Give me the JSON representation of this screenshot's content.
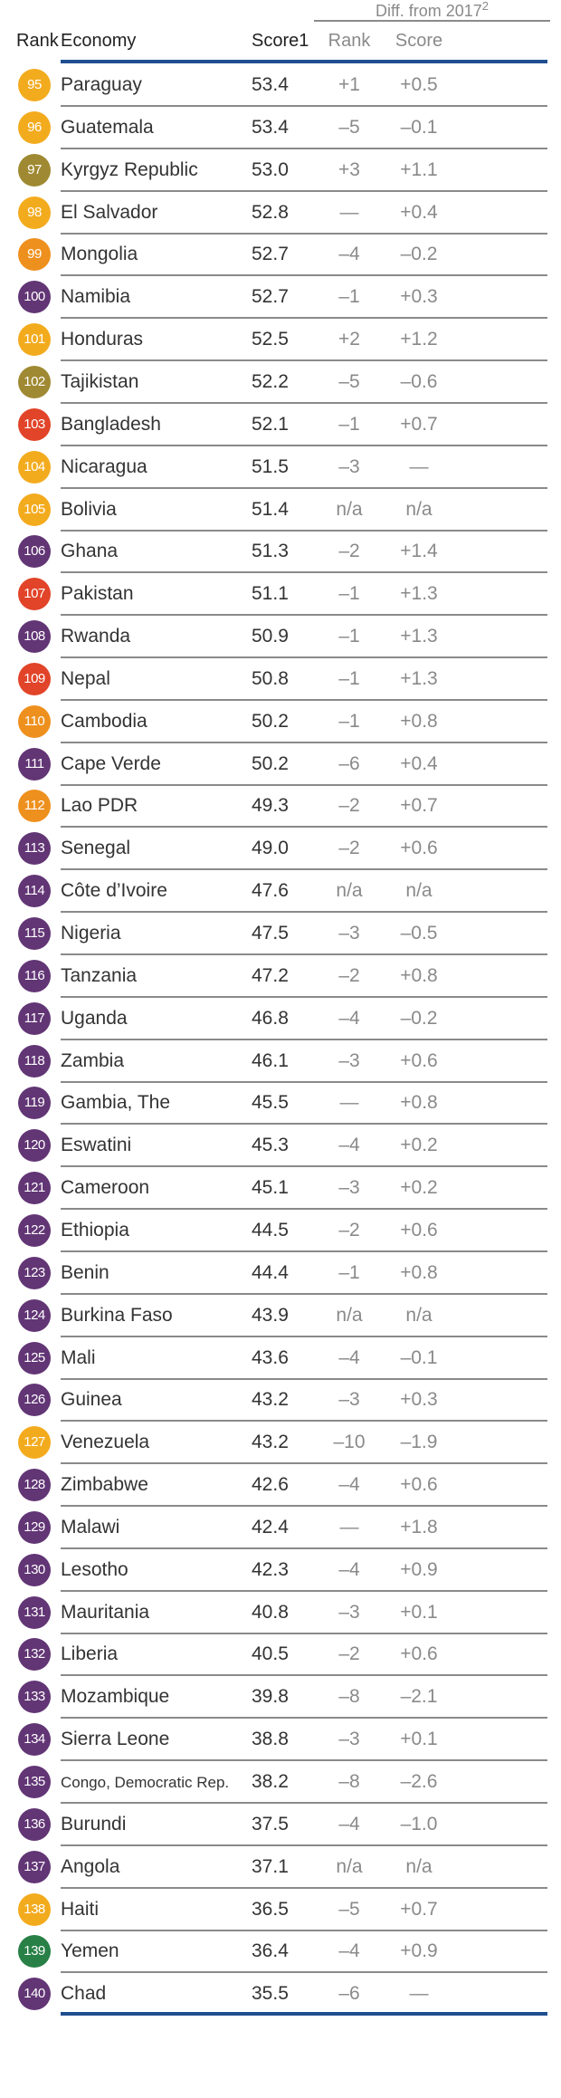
{
  "header": {
    "diff_group": "Diff. from 2017",
    "diff_sup": "2",
    "rank": "Rank",
    "economy": "Economy",
    "score": "Score1",
    "diff_rank": "Rank",
    "diff_score": "Score"
  },
  "colors": {
    "yellow": "#F3A712",
    "orange": "#EE8B12",
    "purple": "#5A2B6E",
    "olive": "#9A8328",
    "red": "#E03A1E",
    "green": "#1E7A3E",
    "rule": "#1F4F8F"
  },
  "rows": [
    {
      "rank": "95",
      "economy": "Paraguay",
      "score": "53.4",
      "diff_rank": "+1",
      "diff_score": "+0.5",
      "color": "yellow"
    },
    {
      "rank": "96",
      "economy": "Guatemala",
      "score": "53.4",
      "diff_rank": "–5",
      "diff_score": "–0.1",
      "color": "yellow"
    },
    {
      "rank": "97",
      "economy": "Kyrgyz Republic",
      "score": "53.0",
      "diff_rank": "+3",
      "diff_score": "+1.1",
      "color": "olive"
    },
    {
      "rank": "98",
      "economy": "El Salvador",
      "score": "52.8",
      "diff_rank": "—",
      "diff_score": "+0.4",
      "color": "yellow"
    },
    {
      "rank": "99",
      "economy": "Mongolia",
      "score": "52.7",
      "diff_rank": "–4",
      "diff_score": "–0.2",
      "color": "orange"
    },
    {
      "rank": "100",
      "economy": "Namibia",
      "score": "52.7",
      "diff_rank": "–1",
      "diff_score": "+0.3",
      "color": "purple"
    },
    {
      "rank": "101",
      "economy": "Honduras",
      "score": "52.5",
      "diff_rank": "+2",
      "diff_score": "+1.2",
      "color": "yellow"
    },
    {
      "rank": "102",
      "economy": "Tajikistan",
      "score": "52.2",
      "diff_rank": "–5",
      "diff_score": "–0.6",
      "color": "olive"
    },
    {
      "rank": "103",
      "economy": "Bangladesh",
      "score": "52.1",
      "diff_rank": "–1",
      "diff_score": "+0.7",
      "color": "red"
    },
    {
      "rank": "104",
      "economy": "Nicaragua",
      "score": "51.5",
      "diff_rank": "–3",
      "diff_score": "—",
      "color": "yellow"
    },
    {
      "rank": "105",
      "economy": "Bolivia",
      "score": "51.4",
      "diff_rank": "n/a",
      "diff_score": "n/a",
      "color": "yellow"
    },
    {
      "rank": "106",
      "economy": "Ghana",
      "score": "51.3",
      "diff_rank": "–2",
      "diff_score": "+1.4",
      "color": "purple"
    },
    {
      "rank": "107",
      "economy": "Pakistan",
      "score": "51.1",
      "diff_rank": "–1",
      "diff_score": "+1.3",
      "color": "red"
    },
    {
      "rank": "108",
      "economy": "Rwanda",
      "score": "50.9",
      "diff_rank": "–1",
      "diff_score": "+1.3",
      "color": "purple"
    },
    {
      "rank": "109",
      "economy": "Nepal",
      "score": "50.8",
      "diff_rank": "–1",
      "diff_score": "+1.3",
      "color": "red"
    },
    {
      "rank": "110",
      "economy": "Cambodia",
      "score": "50.2",
      "diff_rank": "–1",
      "diff_score": "+0.8",
      "color": "orange"
    },
    {
      "rank": "111",
      "economy": "Cape Verde",
      "score": "50.2",
      "diff_rank": "–6",
      "diff_score": "+0.4",
      "color": "purple"
    },
    {
      "rank": "112",
      "economy": "Lao PDR",
      "score": "49.3",
      "diff_rank": "–2",
      "diff_score": "+0.7",
      "color": "orange"
    },
    {
      "rank": "113",
      "economy": "Senegal",
      "score": "49.0",
      "diff_rank": "–2",
      "diff_score": "+0.6",
      "color": "purple"
    },
    {
      "rank": "114",
      "economy": "Côte d’Ivoire",
      "score": "47.6",
      "diff_rank": "n/a",
      "diff_score": "n/a",
      "color": "purple"
    },
    {
      "rank": "115",
      "economy": "Nigeria",
      "score": "47.5",
      "diff_rank": "–3",
      "diff_score": "–0.5",
      "color": "purple"
    },
    {
      "rank": "116",
      "economy": "Tanzania",
      "score": "47.2",
      "diff_rank": "–2",
      "diff_score": "+0.8",
      "color": "purple"
    },
    {
      "rank": "117",
      "economy": "Uganda",
      "score": "46.8",
      "diff_rank": "–4",
      "diff_score": "–0.2",
      "color": "purple"
    },
    {
      "rank": "118",
      "economy": "Zambia",
      "score": "46.1",
      "diff_rank": "–3",
      "diff_score": "+0.6",
      "color": "purple"
    },
    {
      "rank": "119",
      "economy": "Gambia, The",
      "score": "45.5",
      "diff_rank": "—",
      "diff_score": "+0.8",
      "color": "purple"
    },
    {
      "rank": "120",
      "economy": "Eswatini",
      "score": "45.3",
      "diff_rank": "–4",
      "diff_score": "+0.2",
      "color": "purple"
    },
    {
      "rank": "121",
      "economy": "Cameroon",
      "score": "45.1",
      "diff_rank": "–3",
      "diff_score": "+0.2",
      "color": "purple"
    },
    {
      "rank": "122",
      "economy": "Ethiopia",
      "score": "44.5",
      "diff_rank": "–2",
      "diff_score": "+0.6",
      "color": "purple"
    },
    {
      "rank": "123",
      "economy": "Benin",
      "score": "44.4",
      "diff_rank": "–1",
      "diff_score": "+0.8",
      "color": "purple"
    },
    {
      "rank": "124",
      "economy": "Burkina Faso",
      "score": "43.9",
      "diff_rank": "n/a",
      "diff_score": "n/a",
      "color": "purple"
    },
    {
      "rank": "125",
      "economy": "Mali",
      "score": "43.6",
      "diff_rank": "–4",
      "diff_score": "–0.1",
      "color": "purple"
    },
    {
      "rank": "126",
      "economy": "Guinea",
      "score": "43.2",
      "diff_rank": "–3",
      "diff_score": "+0.3",
      "color": "purple"
    },
    {
      "rank": "127",
      "economy": "Venezuela",
      "score": "43.2",
      "diff_rank": "–10",
      "diff_score": "–1.9",
      "color": "yellow"
    },
    {
      "rank": "128",
      "economy": "Zimbabwe",
      "score": "42.6",
      "diff_rank": "–4",
      "diff_score": "+0.6",
      "color": "purple"
    },
    {
      "rank": "129",
      "economy": "Malawi",
      "score": "42.4",
      "diff_rank": "—",
      "diff_score": "+1.8",
      "color": "purple"
    },
    {
      "rank": "130",
      "economy": "Lesotho",
      "score": "42.3",
      "diff_rank": "–4",
      "diff_score": "+0.9",
      "color": "purple"
    },
    {
      "rank": "131",
      "economy": "Mauritania",
      "score": "40.8",
      "diff_rank": "–3",
      "diff_score": "+0.1",
      "color": "purple"
    },
    {
      "rank": "132",
      "economy": "Liberia",
      "score": "40.5",
      "diff_rank": "–2",
      "diff_score": "+0.6",
      "color": "purple"
    },
    {
      "rank": "133",
      "economy": "Mozambique",
      "score": "39.8",
      "diff_rank": "–8",
      "diff_score": "–2.1",
      "color": "purple"
    },
    {
      "rank": "134",
      "economy": "Sierra Leone",
      "score": "38.8",
      "diff_rank": "–3",
      "diff_score": "+0.1",
      "color": "purple"
    },
    {
      "rank": "135",
      "economy": "Congo, Democratic Rep.",
      "score": "38.2",
      "diff_rank": "–8",
      "diff_score": "–2.6",
      "color": "purple",
      "small": true
    },
    {
      "rank": "136",
      "economy": "Burundi",
      "score": "37.5",
      "diff_rank": "–4",
      "diff_score": "–1.0",
      "color": "purple"
    },
    {
      "rank": "137",
      "economy": "Angola",
      "score": "37.1",
      "diff_rank": "n/a",
      "diff_score": "n/a",
      "color": "purple"
    },
    {
      "rank": "138",
      "economy": "Haiti",
      "score": "36.5",
      "diff_rank": "–5",
      "diff_score": "+0.7",
      "color": "yellow"
    },
    {
      "rank": "139",
      "economy": "Yemen",
      "score": "36.4",
      "diff_rank": "–4",
      "diff_score": "+0.9",
      "color": "green"
    },
    {
      "rank": "140",
      "economy": "Chad",
      "score": "35.5",
      "diff_rank": "–6",
      "diff_score": "—",
      "color": "purple"
    }
  ]
}
